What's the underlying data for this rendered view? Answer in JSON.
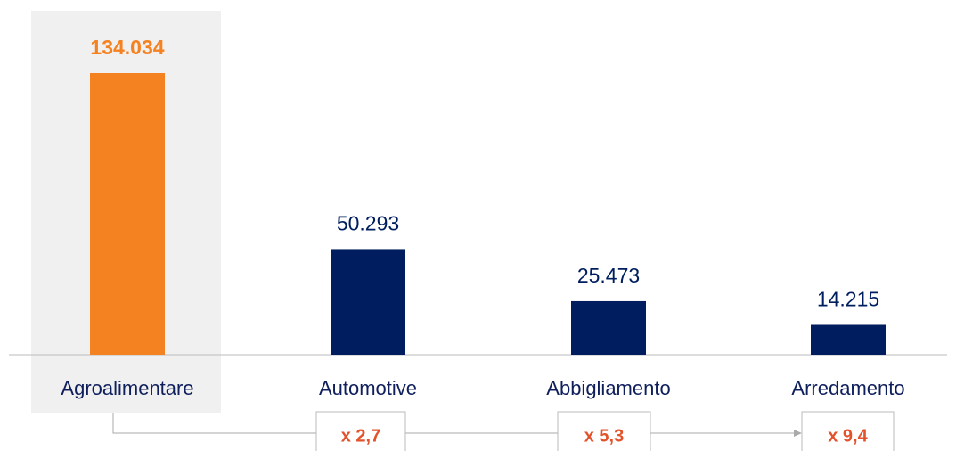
{
  "chart_data": {
    "type": "bar",
    "categories": [
      "Agroalimentare",
      "Automotive",
      "Abbigliamento",
      "Arredamento"
    ],
    "values": [
      134034,
      50293,
      25473,
      14215
    ],
    "value_labels": [
      "134.034",
      "50.293",
      "25.473",
      "14.215"
    ],
    "colors": [
      "#f58220",
      "#001e5f",
      "#001e5f",
      "#001e5f"
    ],
    "annotations": [
      "x 2,7",
      "x 5,3",
      "x 9,4"
    ]
  }
}
